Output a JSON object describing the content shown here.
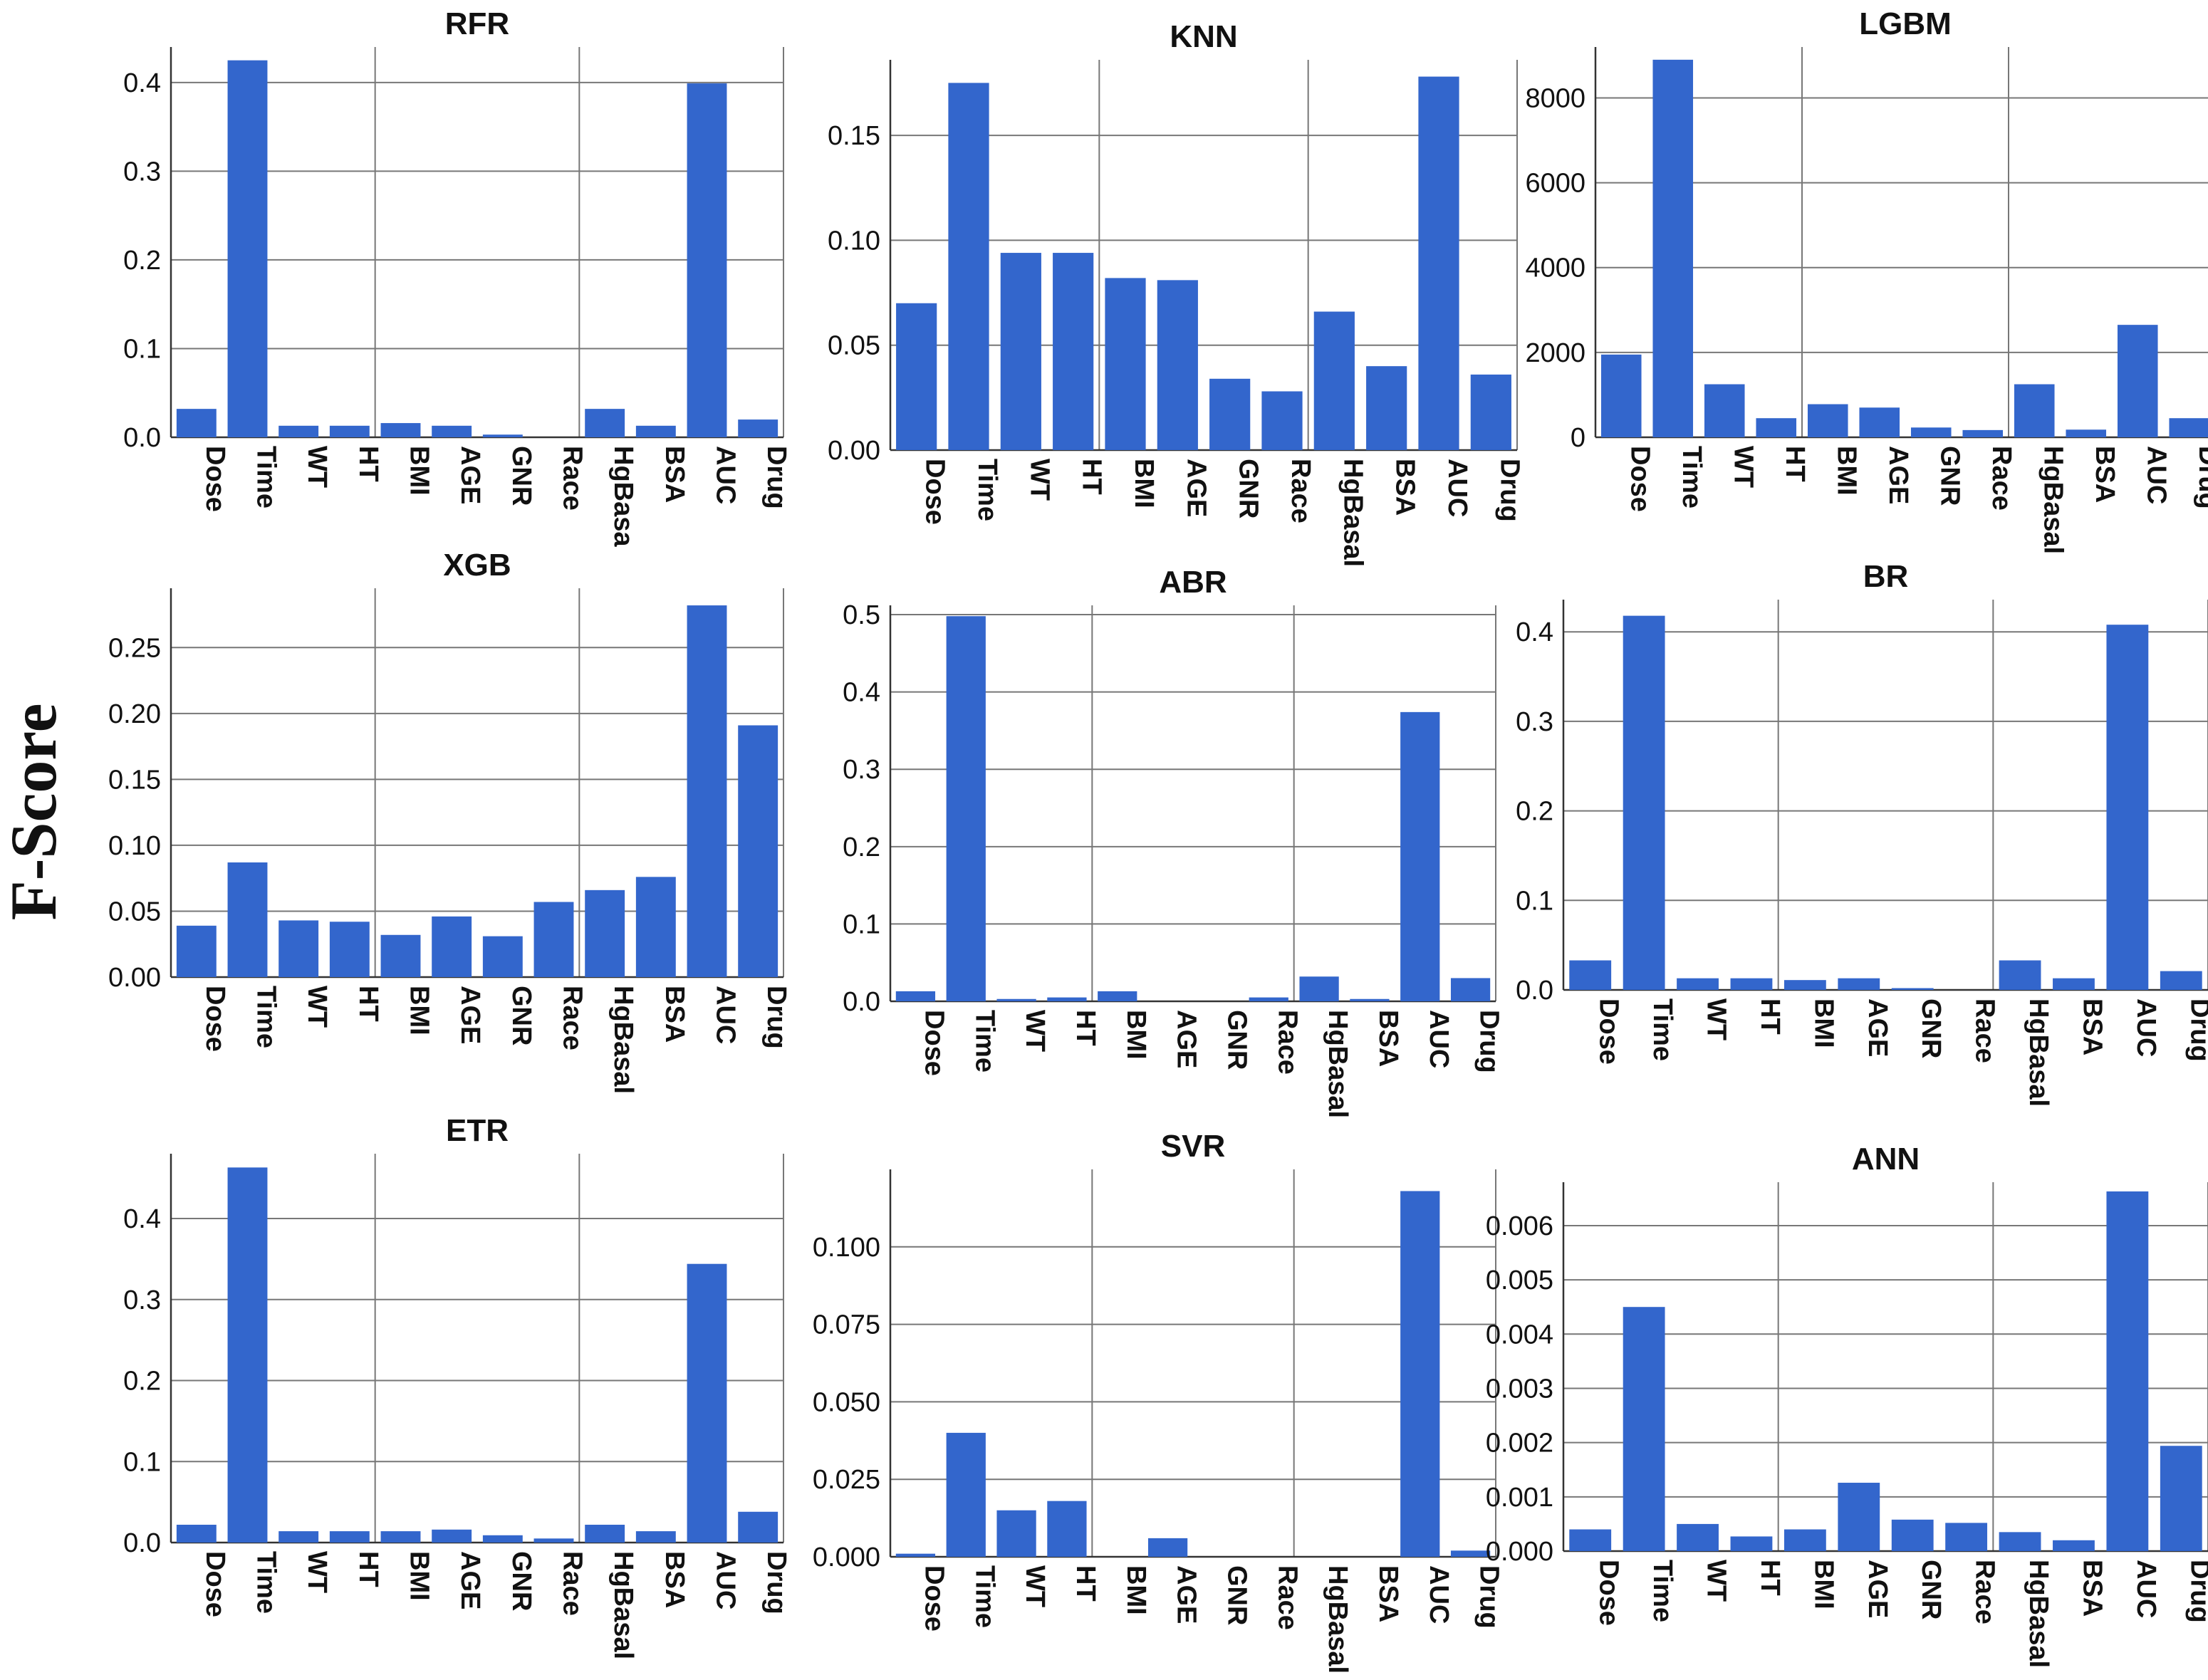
{
  "figure": {
    "ylabel": "F-Score",
    "bar_color": "#3366cc",
    "grid_color": "#777777"
  },
  "chart_data": [
    {
      "type": "bar",
      "title": "RFR",
      "categories": [
        "Dose",
        "Time",
        "WT",
        "HT",
        "BMI",
        "AGE",
        "GNR",
        "Race",
        "HgBasa",
        "BSA",
        "AUC",
        "Drug"
      ],
      "values": [
        0.032,
        0.425,
        0.013,
        0.013,
        0.016,
        0.013,
        0.003,
        0.0,
        0.032,
        0.013,
        0.399,
        0.02
      ],
      "ylim": [
        0,
        0.44
      ],
      "yticks": [
        0.0,
        0.1,
        0.2,
        0.3,
        0.4
      ],
      "ytick_labels": [
        "0.0",
        "0.1",
        "0.2",
        "0.3",
        "0.4"
      ]
    },
    {
      "type": "bar",
      "title": "KNN",
      "categories": [
        "Dose",
        "Time",
        "WT",
        "HT",
        "BMI",
        "AGE",
        "GNR",
        "Race",
        "HgBasal",
        "BSA",
        "AUC",
        "Drug"
      ],
      "values": [
        0.07,
        0.175,
        0.094,
        0.094,
        0.082,
        0.081,
        0.034,
        0.028,
        0.066,
        0.04,
        0.178,
        0.036
      ],
      "ylim": [
        0,
        0.186
      ],
      "yticks": [
        0.0,
        0.05,
        0.1,
        0.15
      ],
      "ytick_labels": [
        "0.00",
        "0.05",
        "0.10",
        "0.15"
      ]
    },
    {
      "type": "bar",
      "title": "LGBM",
      "categories": [
        "Dose",
        "Time",
        "WT",
        "HT",
        "BMI",
        "AGE",
        "GNR",
        "Race",
        "HgBasal",
        "BSA",
        "AUC",
        "Drug"
      ],
      "values": [
        1950,
        8900,
        1250,
        450,
        780,
        700,
        230,
        170,
        1250,
        180,
        2650,
        450
      ],
      "ylim": [
        0,
        9200
      ],
      "yticks": [
        0,
        2000,
        4000,
        6000,
        8000
      ],
      "ytick_labels": [
        "0",
        "2000",
        "4000",
        "6000",
        "8000"
      ]
    },
    {
      "type": "bar",
      "title": "XGB",
      "categories": [
        "Dose",
        "Time",
        "WT",
        "HT",
        "BMI",
        "AGE",
        "GNR",
        "Race",
        "HgBasal",
        "BSA",
        "AUC",
        "Drug"
      ],
      "values": [
        0.039,
        0.087,
        0.043,
        0.042,
        0.032,
        0.046,
        0.031,
        0.057,
        0.066,
        0.076,
        0.282,
        0.191
      ],
      "ylim": [
        0,
        0.295
      ],
      "yticks": [
        0.0,
        0.05,
        0.1,
        0.15,
        0.2,
        0.25
      ],
      "ytick_labels": [
        "0.00",
        "0.05",
        "0.10",
        "0.15",
        "0.20",
        "0.25"
      ]
    },
    {
      "type": "bar",
      "title": "ABR",
      "categories": [
        "Dose",
        "Time",
        "WT",
        "HT",
        "BMI",
        "AGE",
        "GNR",
        "Race",
        "HgBasal",
        "BSA",
        "AUC",
        "Drug"
      ],
      "values": [
        0.013,
        0.498,
        0.003,
        0.005,
        0.013,
        0.0,
        0.0,
        0.005,
        0.032,
        0.003,
        0.374,
        0.03
      ],
      "ylim": [
        0,
        0.512
      ],
      "yticks": [
        0.0,
        0.1,
        0.2,
        0.3,
        0.4,
        0.5
      ],
      "ytick_labels": [
        "0.0",
        "0.1",
        "0.2",
        "0.3",
        "0.4",
        "0.5"
      ]
    },
    {
      "type": "bar",
      "title": "BR",
      "categories": [
        "Dose",
        "Time",
        "WT",
        "HT",
        "BMI",
        "AGE",
        "GNR",
        "Race",
        "HgBasal",
        "BSA",
        "AUC",
        "Drug"
      ],
      "values": [
        0.033,
        0.418,
        0.013,
        0.013,
        0.011,
        0.013,
        0.002,
        0.0,
        0.033,
        0.013,
        0.408,
        0.021
      ],
      "ylim": [
        0,
        0.436
      ],
      "yticks": [
        0.0,
        0.1,
        0.2,
        0.3,
        0.4
      ],
      "ytick_labels": [
        "0.0",
        "0.1",
        "0.2",
        "0.3",
        "0.4"
      ]
    },
    {
      "type": "bar",
      "title": "ETR",
      "categories": [
        "Dose",
        "Time",
        "WT",
        "HT",
        "BMI",
        "AGE",
        "GNR",
        "Race",
        "HgBasal",
        "BSA",
        "AUC",
        "Drug"
      ],
      "values": [
        0.022,
        0.463,
        0.014,
        0.014,
        0.014,
        0.016,
        0.009,
        0.005,
        0.022,
        0.014,
        0.344,
        0.038
      ],
      "ylim": [
        0,
        0.48
      ],
      "yticks": [
        0.0,
        0.1,
        0.2,
        0.3,
        0.4
      ],
      "ytick_labels": [
        "0.0",
        "0.1",
        "0.2",
        "0.3",
        "0.4"
      ]
    },
    {
      "type": "bar",
      "title": "SVR",
      "categories": [
        "Dose",
        "Time",
        "WT",
        "HT",
        "BMI",
        "AGE",
        "GNR",
        "Race",
        "HgBasal",
        "BSA",
        "AUC",
        "Drug"
      ],
      "values": [
        0.001,
        0.04,
        0.015,
        0.018,
        0.0,
        0.006,
        0.0,
        0.0,
        0.0,
        0.0,
        0.118,
        0.002
      ],
      "ylim": [
        0,
        0.125
      ],
      "yticks": [
        0.0,
        0.025,
        0.05,
        0.075,
        0.1
      ],
      "ytick_labels": [
        "0.000",
        "0.025",
        "0.050",
        "0.075",
        "0.100"
      ]
    },
    {
      "type": "bar",
      "title": "ANN",
      "categories": [
        "Dose",
        "Time",
        "WT",
        "HT",
        "BMI",
        "AGE",
        "GNR",
        "Race",
        "HgBasal",
        "BSA",
        "AUC",
        "Drug"
      ],
      "values": [
        0.0004,
        0.0045,
        0.0005,
        0.00027,
        0.0004,
        0.00126,
        0.00058,
        0.00052,
        0.00035,
        0.0002,
        0.00663,
        0.00194
      ],
      "ylim": [
        0,
        0.0068
      ],
      "yticks": [
        0.0,
        0.001,
        0.002,
        0.003,
        0.004,
        0.005,
        0.006
      ],
      "ytick_labels": [
        "0.000",
        "0.001",
        "0.002",
        "0.003",
        "0.004",
        "0.005",
        "0.006"
      ]
    }
  ]
}
